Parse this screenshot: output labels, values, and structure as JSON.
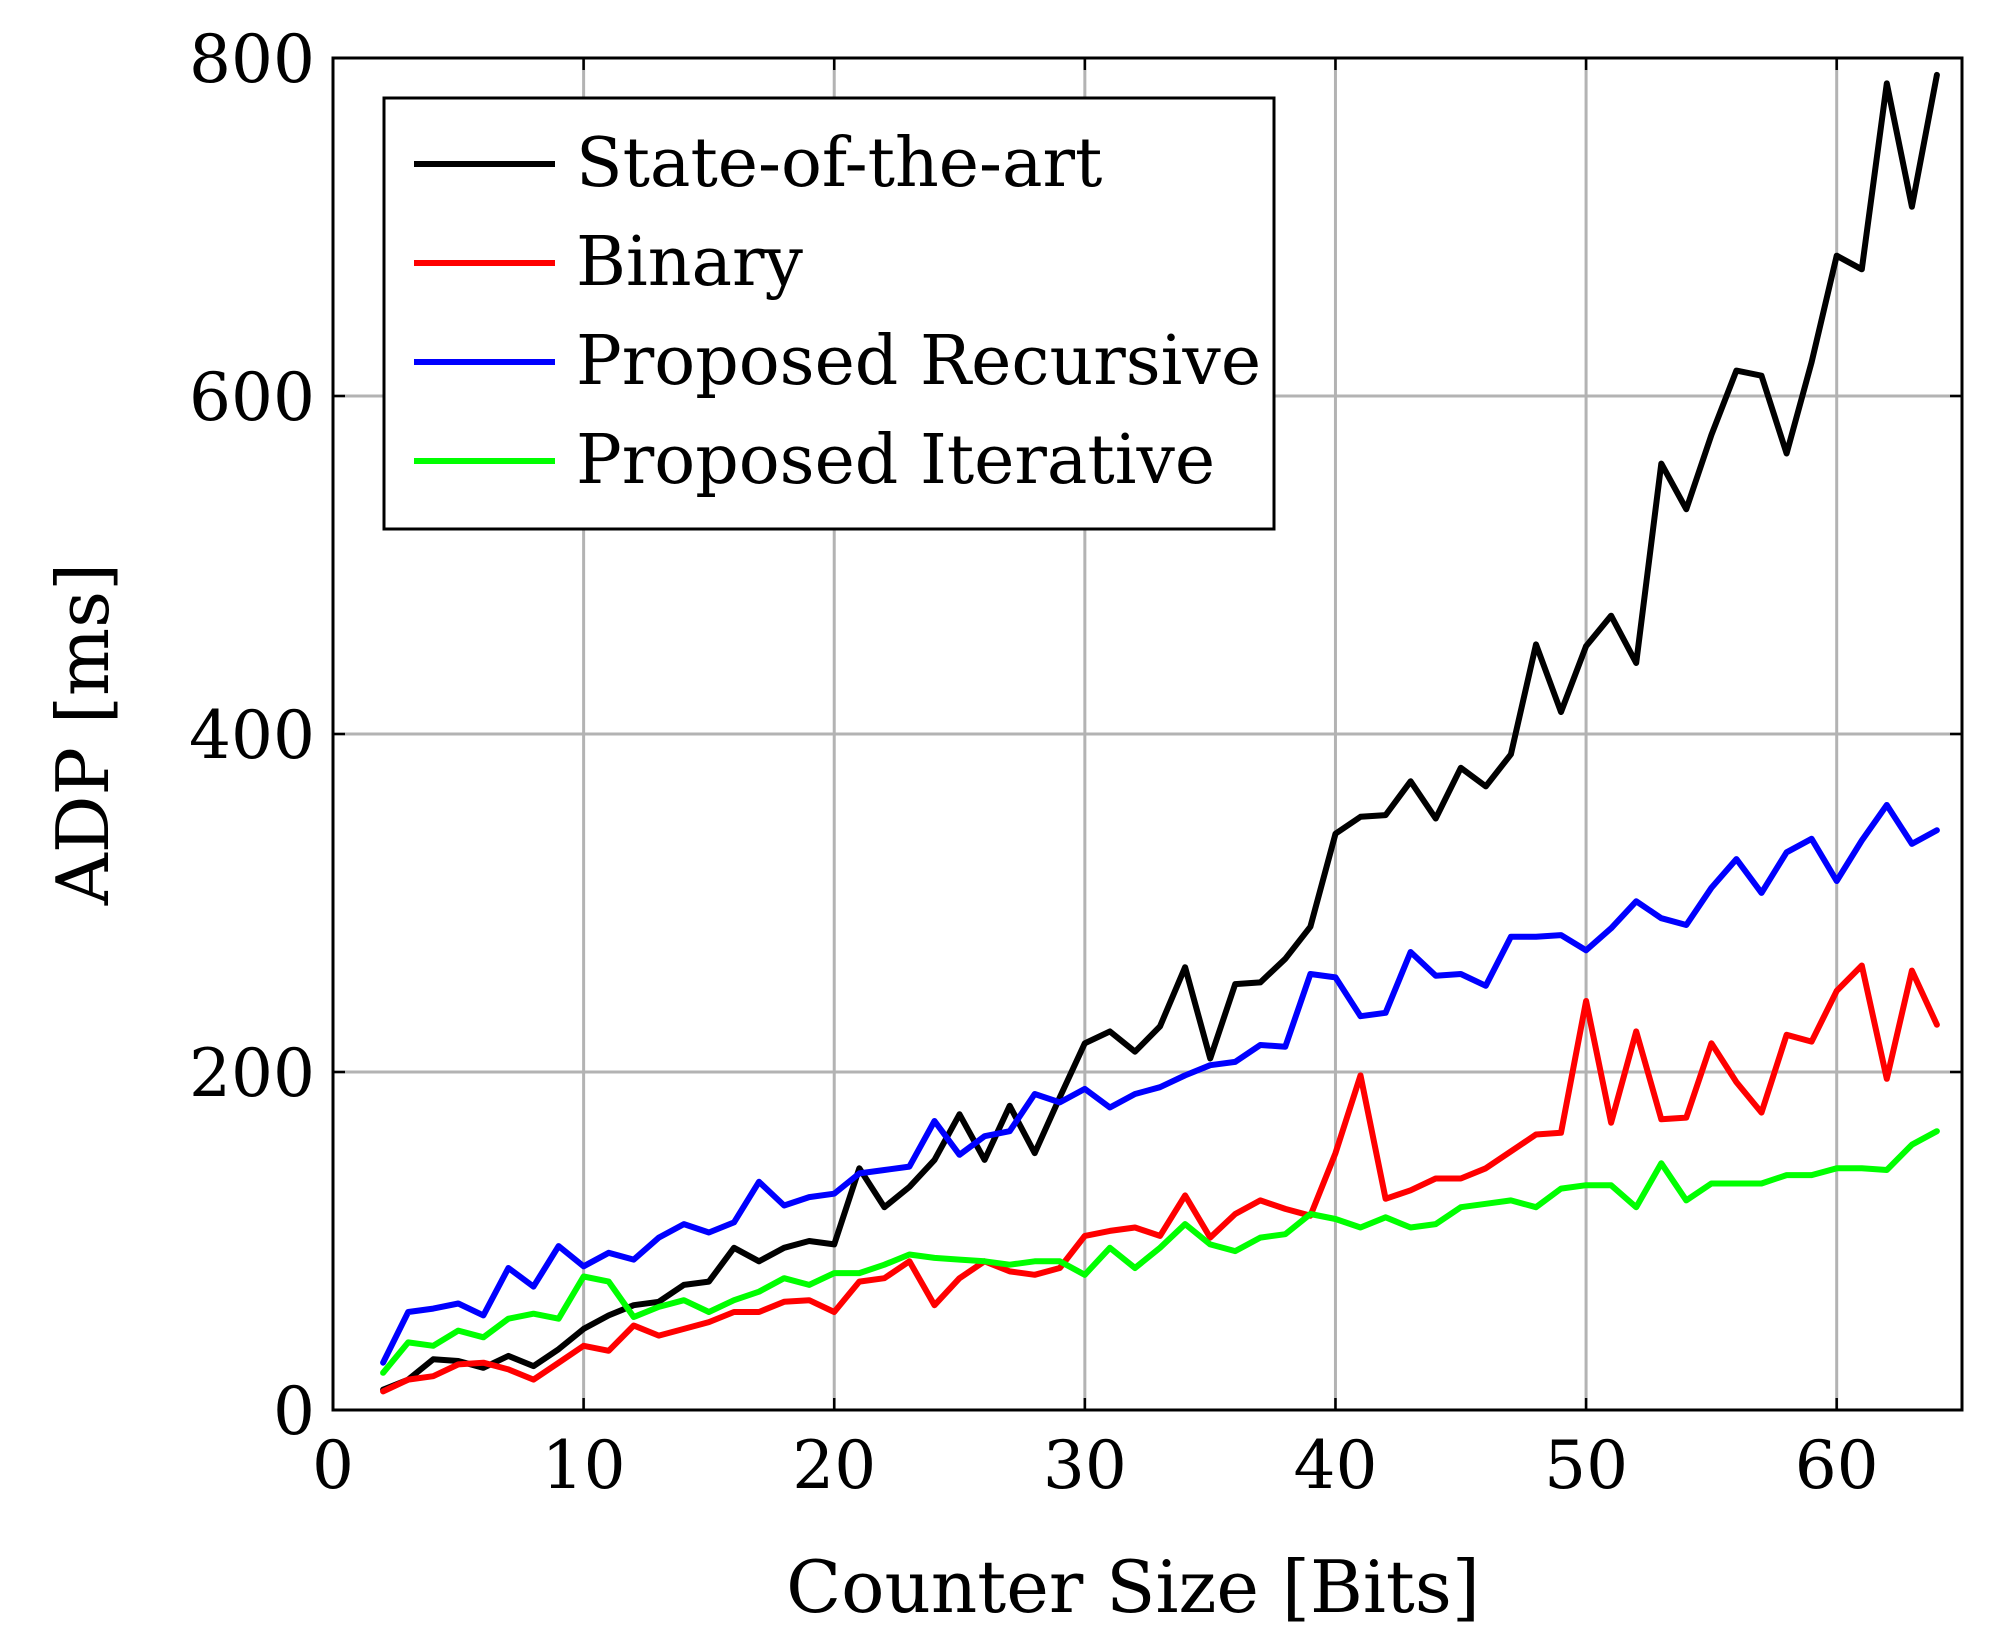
{
  "chart_data": {
    "type": "line",
    "title": "",
    "xlabel": "Counter Size [Bits]",
    "ylabel": "ADP [ms]",
    "xlim": [
      0,
      65
    ],
    "ylim": [
      0,
      800
    ],
    "xticks": [
      0,
      10,
      20,
      30,
      40,
      50,
      60
    ],
    "yticks": [
      0,
      200,
      400,
      600,
      800
    ],
    "xtick_labels": [
      "0",
      "10",
      "20",
      "30",
      "40",
      "50",
      "60"
    ],
    "ytick_labels": [
      "0",
      "200",
      "400",
      "600",
      "800"
    ],
    "grid": true,
    "legend_position": "top-left",
    "x": [
      2,
      3,
      4,
      5,
      6,
      7,
      8,
      9,
      10,
      11,
      12,
      13,
      14,
      15,
      16,
      17,
      18,
      19,
      20,
      21,
      22,
      23,
      24,
      25,
      26,
      27,
      28,
      29,
      30,
      31,
      32,
      33,
      34,
      35,
      36,
      37,
      38,
      39,
      40,
      41,
      42,
      43,
      44,
      45,
      46,
      47,
      48,
      49,
      50,
      51,
      52,
      53,
      54,
      55,
      56,
      57,
      58,
      59,
      60,
      61,
      62,
      63,
      64
    ],
    "series": [
      {
        "name": "State-of-the-art",
        "color": "#000000",
        "values": [
          12,
          18,
          30,
          29,
          25,
          32,
          26,
          36,
          48,
          56,
          62,
          64,
          74,
          76,
          96,
          88,
          96,
          100,
          98,
          143,
          120,
          132,
          148,
          175,
          148,
          180,
          152,
          185,
          217,
          224,
          212,
          227,
          262,
          208,
          252,
          253,
          267,
          286,
          341,
          351,
          352,
          372,
          350,
          380,
          369,
          388,
          453,
          413,
          452,
          470,
          442,
          560,
          533,
          577,
          615,
          612,
          566,
          620,
          683,
          675,
          785,
          712,
          790
        ]
      },
      {
        "name": "Binary",
        "color": "#ff0000",
        "values": [
          11,
          18,
          20,
          27,
          28,
          24,
          18,
          28,
          38,
          35,
          50,
          44,
          48,
          52,
          58,
          58,
          64,
          65,
          58,
          76,
          78,
          88,
          62,
          78,
          88,
          82,
          80,
          84,
          103,
          106,
          108,
          103,
          127,
          102,
          116,
          124,
          119,
          115,
          152,
          198,
          125,
          130,
          137,
          137,
          143,
          153,
          163,
          164,
          242,
          170,
          224,
          172,
          173,
          217,
          194,
          176,
          222,
          218,
          248,
          263,
          196,
          260,
          228
        ]
      },
      {
        "name": "Proposed Recursive",
        "color": "#0000ff",
        "values": [
          28,
          58,
          60,
          63,
          56,
          84,
          73,
          97,
          85,
          93,
          89,
          102,
          110,
          105,
          111,
          135,
          121,
          126,
          128,
          140,
          142,
          144,
          171,
          151,
          162,
          165,
          187,
          182,
          190,
          179,
          187,
          191,
          198,
          204,
          206,
          216,
          215,
          258,
          256,
          233,
          235,
          271,
          257,
          258,
          251,
          280,
          280,
          281,
          272,
          285,
          301,
          291,
          287,
          309,
          326,
          306,
          330,
          338,
          313,
          337,
          358,
          335,
          343
        ]
      },
      {
        "name": "Proposed Iterative",
        "color": "#00ff00",
        "values": [
          22,
          40,
          38,
          47,
          43,
          54,
          57,
          54,
          79,
          76,
          55,
          61,
          65,
          58,
          65,
          70,
          78,
          74,
          81,
          81,
          86,
          92,
          90,
          89,
          88,
          86,
          88,
          88,
          80,
          96,
          84,
          96,
          110,
          98,
          94,
          102,
          104,
          116,
          113,
          108,
          114,
          108,
          110,
          120,
          122,
          124,
          120,
          131,
          133,
          133,
          120,
          146,
          124,
          134,
          134,
          134,
          139,
          139,
          143,
          143,
          142,
          157,
          165
        ]
      }
    ]
  }
}
